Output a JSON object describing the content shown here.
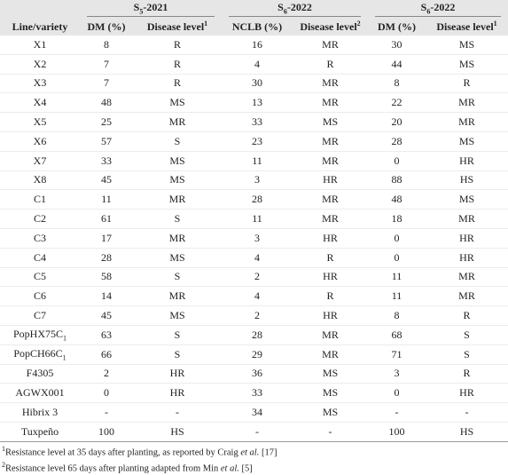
{
  "header": {
    "groups": [
      {
        "text": "S",
        "sub": "5",
        "suffix": "-2021"
      },
      {
        "text": "S",
        "sub": "6",
        "suffix": "-2022"
      },
      {
        "text": "S",
        "sub": "6",
        "suffix": "-2022"
      }
    ],
    "columns": [
      {
        "text": "Line/variety"
      },
      {
        "text": "DM (%)"
      },
      {
        "text": "Disease level",
        "sup": "1"
      },
      {
        "text": "NCLB (%)"
      },
      {
        "text": "Disease level",
        "sup": "2"
      },
      {
        "text": "DM (%)"
      },
      {
        "text": "Disease level",
        "sup": "1"
      }
    ]
  },
  "rows": [
    {
      "line": "X1",
      "cells": [
        "8",
        "R",
        "16",
        "MR",
        "30",
        "MS"
      ]
    },
    {
      "line": "X2",
      "cells": [
        "7",
        "R",
        "4",
        "R",
        "44",
        "MS"
      ]
    },
    {
      "line": "X3",
      "cells": [
        "7",
        "R",
        "30",
        "MR",
        "8",
        "R"
      ]
    },
    {
      "line": "X4",
      "cells": [
        "48",
        "MS",
        "13",
        "MR",
        "22",
        "MR"
      ]
    },
    {
      "line": "X5",
      "cells": [
        "25",
        "MR",
        "33",
        "MS",
        "20",
        "MR"
      ]
    },
    {
      "line": "X6",
      "cells": [
        "57",
        "S",
        "23",
        "MR",
        "28",
        "MS"
      ]
    },
    {
      "line": "X7",
      "cells": [
        "33",
        "MS",
        "11",
        "MR",
        "0",
        "HR"
      ]
    },
    {
      "line": "X8",
      "cells": [
        "45",
        "MS",
        "3",
        "HR",
        "88",
        "HS"
      ]
    },
    {
      "line": "C1",
      "cells": [
        "11",
        "MR",
        "28",
        "MR",
        "48",
        "MS"
      ]
    },
    {
      "line": "C2",
      "cells": [
        "61",
        "S",
        "11",
        "MR",
        "18",
        "MR"
      ]
    },
    {
      "line": "C3",
      "cells": [
        "17",
        "MR",
        "3",
        "HR",
        "0",
        "HR"
      ]
    },
    {
      "line": "C4",
      "cells": [
        "28",
        "MS",
        "4",
        "R",
        "0",
        "HR"
      ]
    },
    {
      "line": "C5",
      "cells": [
        "58",
        "S",
        "2",
        "HR",
        "11",
        "MR"
      ]
    },
    {
      "line": "C6",
      "cells": [
        "14",
        "MR",
        "4",
        "R",
        "11",
        "MR"
      ]
    },
    {
      "line": "C7",
      "cells": [
        "45",
        "MS",
        "2",
        "HR",
        "8",
        "R"
      ]
    },
    {
      "line": "PopHX75C",
      "line_sub": "1",
      "cells": [
        "63",
        "S",
        "28",
        "MR",
        "68",
        "S"
      ]
    },
    {
      "line": "PopCH66C",
      "line_sub": "1",
      "cells": [
        "66",
        "S",
        "29",
        "MR",
        "71",
        "S"
      ]
    },
    {
      "line": "F4305",
      "cells": [
        "2",
        "HR",
        "36",
        "MS",
        "3",
        "R"
      ]
    },
    {
      "line": "AGWX001",
      "cells": [
        "0",
        "HR",
        "33",
        "MS",
        "0",
        "HR"
      ]
    },
    {
      "line": "Hibrix 3",
      "cells": [
        "-",
        "-",
        "34",
        "MS",
        "-",
        "-"
      ]
    },
    {
      "line": "Tuxpeño",
      "cells": [
        "100",
        "HS",
        "-",
        "-",
        "100",
        "HS"
      ]
    }
  ],
  "footnotes": [
    {
      "mark": "1",
      "text": "Resistance level at 35 days after planting, as reported by Craig ",
      "italic": "et al.",
      "ref": " [17]"
    },
    {
      "mark": "2",
      "text": "Resistance level 65 days after planting adapted from Min ",
      "italic": "et al.",
      "ref": " [5]"
    }
  ]
}
